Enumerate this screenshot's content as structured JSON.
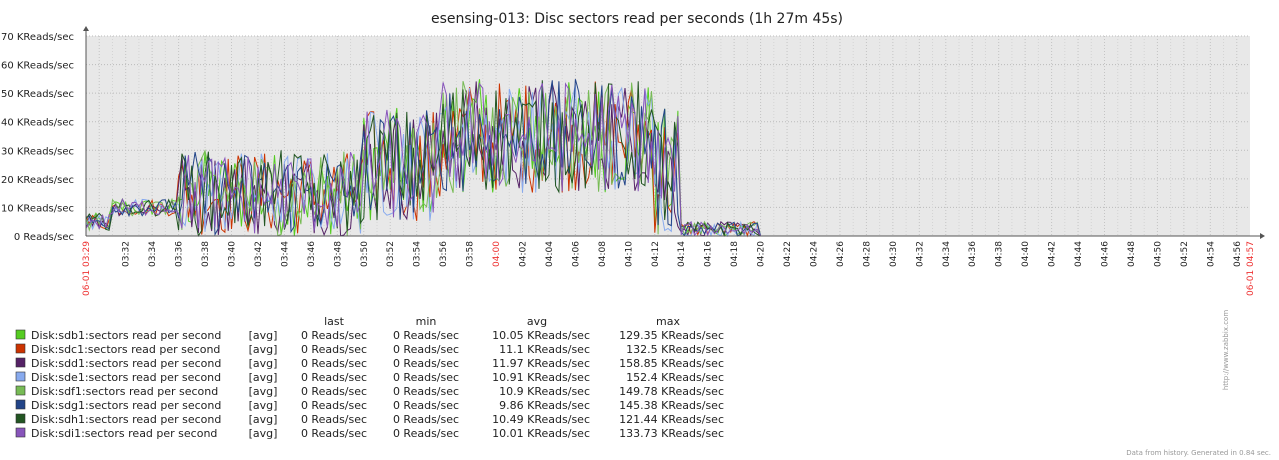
{
  "chart_data": {
    "type": "line",
    "title": "esensing-013: Disc sectors read per seconds (1h 27m 45s)",
    "ylabel_unit": "KReads/sec",
    "ylim": [
      0,
      70
    ],
    "yticks": [
      "0 Reads/sec",
      "10 KReads/sec",
      "20 KReads/sec",
      "30 KReads/sec",
      "40 KReads/sec",
      "50 KReads/sec",
      "60 KReads/sec",
      "70 KReads/sec"
    ],
    "grid": true,
    "x_start_label": "06-01 03:29",
    "x_end_label": "06-01 04:57",
    "xticks": [
      "03:32",
      "03:34",
      "03:36",
      "03:38",
      "03:40",
      "03:42",
      "03:44",
      "03:46",
      "03:48",
      "03:50",
      "03:52",
      "03:54",
      "03:56",
      "03:58",
      "04:00",
      "04:02",
      "04:04",
      "04:06",
      "04:08",
      "04:10",
      "04:12",
      "04:14",
      "04:16",
      "04:18",
      "04:20",
      "04:22",
      "04:24",
      "04:26",
      "04:28",
      "04:30",
      "04:32",
      "04:34",
      "04:36",
      "04:38",
      "04:40",
      "04:42",
      "04:44",
      "04:46",
      "04:48",
      "04:50",
      "04:52",
      "04:54",
      "04:56"
    ],
    "highlight_tick": "04:00",
    "x_minutes_range": [
      209,
      297
    ],
    "phases": [
      {
        "x": [
          209,
          211
        ],
        "y": [
          2,
          8
        ]
      },
      {
        "x": [
          211,
          216
        ],
        "y": [
          7,
          13
        ]
      },
      {
        "x": [
          216,
          230
        ],
        "y": [
          0,
          30
        ]
      },
      {
        "x": [
          230,
          236
        ],
        "y": [
          5,
          45
        ]
      },
      {
        "x": [
          236,
          252
        ],
        "y": [
          15,
          55
        ]
      },
      {
        "x": [
          252,
          254
        ],
        "y": [
          0,
          45
        ]
      },
      {
        "x": [
          254,
          260
        ],
        "y": [
          0,
          5
        ]
      },
      {
        "x": [
          260,
          297
        ],
        "y": [
          0,
          0
        ]
      }
    ],
    "legend_headers": {
      "last": "last",
      "min": "min",
      "avg": "avg",
      "max": "max"
    },
    "series": [
      {
        "name": "Disk:sdb1:sectors read per second",
        "func": "[avg]",
        "last": "0 Reads/sec",
        "min": "0 Reads/sec",
        "avg": "10.05 KReads/sec",
        "max": "129.35 KReads/sec",
        "color": "#55cc22"
      },
      {
        "name": "Disk:sdc1:sectors read per second",
        "func": "[avg]",
        "last": "0 Reads/sec",
        "min": "0 Reads/sec",
        "avg": "11.1 KReads/sec",
        "max": "132.5 KReads/sec",
        "color": "#cc3300"
      },
      {
        "name": "Disk:sdd1:sectors read per second",
        "func": "[avg]",
        "last": "0 Reads/sec",
        "min": "0 Reads/sec",
        "avg": "11.97 KReads/sec",
        "max": "158.85 KReads/sec",
        "color": "#552266"
      },
      {
        "name": "Disk:sde1:sectors read per second",
        "func": "[avg]",
        "last": "0 Reads/sec",
        "min": "0 Reads/sec",
        "avg": "10.91 KReads/sec",
        "max": "152.4 KReads/sec",
        "color": "#88aaee"
      },
      {
        "name": "Disk:sdf1:sectors read per second",
        "func": "[avg]",
        "last": "0 Reads/sec",
        "min": "0 Reads/sec",
        "avg": "10.9 KReads/sec",
        "max": "149.78 KReads/sec",
        "color": "#77bb55"
      },
      {
        "name": "Disk:sdg1:sectors read per second",
        "func": "[avg]",
        "last": "0 Reads/sec",
        "min": "0 Reads/sec",
        "avg": "9.86 KReads/sec",
        "max": "145.38 KReads/sec",
        "color": "#224488"
      },
      {
        "name": "Disk:sdh1:sectors read per second",
        "func": "[avg]",
        "last": "0 Reads/sec",
        "min": "0 Reads/sec",
        "avg": "10.49 KReads/sec",
        "max": "121.44 KReads/sec",
        "color": "#225522"
      },
      {
        "name": "Disk:sdi1:sectors read per second",
        "func": "[avg]",
        "last": "0 Reads/sec",
        "min": "0 Reads/sec",
        "avg": "10.01 KReads/sec",
        "max": "133.73 KReads/sec",
        "color": "#8855bb"
      }
    ]
  },
  "side_url": "http://www.zabbix.com",
  "footer": "Data from history. Generated in 0.84 sec."
}
